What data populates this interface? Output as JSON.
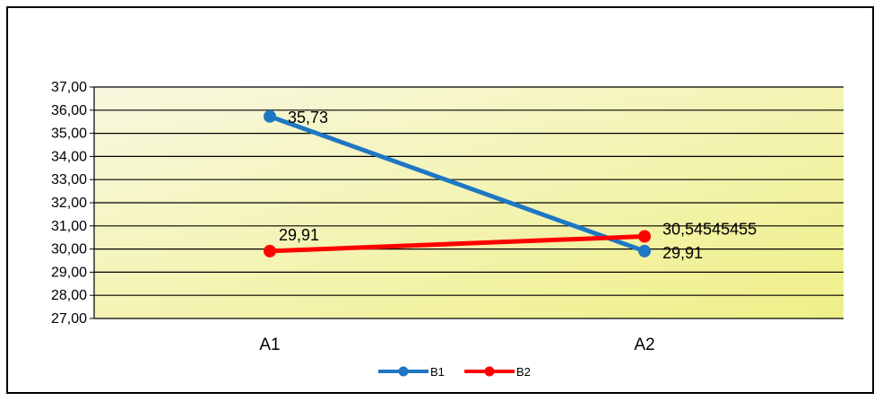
{
  "chart_data": {
    "type": "line",
    "categories": [
      "A1",
      "A2"
    ],
    "ylim": [
      27,
      37
    ],
    "y_ticks": [
      "27,00",
      "28,00",
      "29,00",
      "30,00",
      "31,00",
      "32,00",
      "33,00",
      "34,00",
      "35,00",
      "36,00",
      "37,00"
    ],
    "grid": true,
    "legend_position": "bottom",
    "series": [
      {
        "name": "B1",
        "values": [
          35.73,
          29.91
        ],
        "labels": [
          "35,73",
          "29,91"
        ],
        "color": "#1f77c4"
      },
      {
        "name": "B2",
        "values": [
          29.91,
          30.54545455
        ],
        "labels": [
          "29,91",
          "30,54545455"
        ],
        "color": "#ff0000"
      }
    ],
    "plot_gradient": [
      "#f8f8e0",
      "#efef88"
    ]
  }
}
